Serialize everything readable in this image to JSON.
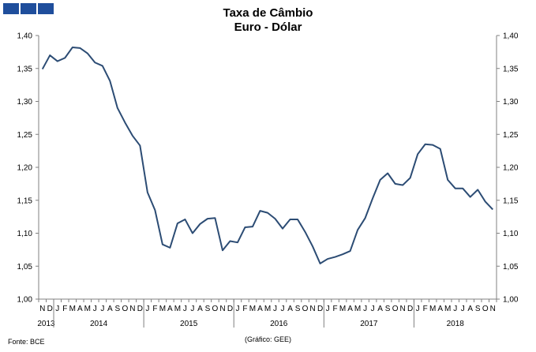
{
  "header": {
    "title_line1": "Taxa de Câmbio",
    "title_line2": "Euro - Dólar"
  },
  "logo": {
    "icon": "institution-logo-blocks",
    "color": "#1f4e9c"
  },
  "footer": {
    "source": "Fonte: BCE",
    "credit": "(Gráfico: GEE)"
  },
  "chart_data": {
    "type": "line",
    "title": "Taxa de Câmbio Euro - Dólar",
    "ylim": [
      1.0,
      1.4
    ],
    "y_ticks": [
      "1,40",
      "1,35",
      "1,30",
      "1,25",
      "1,20",
      "1,15",
      "1,10",
      "1,05",
      "1,00"
    ],
    "y_tick_values": [
      1.4,
      1.35,
      1.3,
      1.25,
      1.2,
      1.15,
      1.1,
      1.05,
      1.0
    ],
    "y_axes": [
      "left",
      "right"
    ],
    "grid": false,
    "line_color": "#2c4c74",
    "x_months": [
      "N",
      "D",
      "J",
      "F",
      "M",
      "A",
      "M",
      "J",
      "J",
      "A",
      "S",
      "O",
      "N",
      "D",
      "J",
      "F",
      "M",
      "A",
      "M",
      "J",
      "J",
      "A",
      "S",
      "O",
      "N",
      "D",
      "J",
      "F",
      "M",
      "A",
      "M",
      "J",
      "J",
      "A",
      "S",
      "O",
      "N",
      "D",
      "J",
      "F",
      "M",
      "A",
      "M",
      "J",
      "J",
      "A",
      "S",
      "O",
      "N",
      "D",
      "J",
      "F",
      "M",
      "A",
      "M",
      "J",
      "J",
      "A",
      "S",
      "O",
      "N"
    ],
    "x_years": [
      {
        "label": "2013",
        "start": 0,
        "end": 1
      },
      {
        "label": "2014",
        "start": 2,
        "end": 13
      },
      {
        "label": "2015",
        "start": 14,
        "end": 25
      },
      {
        "label": "2016",
        "start": 26,
        "end": 37
      },
      {
        "label": "2017",
        "start": 38,
        "end": 49
      },
      {
        "label": "2018",
        "start": 50,
        "end": 60
      }
    ],
    "values": [
      1.349,
      1.37,
      1.361,
      1.366,
      1.382,
      1.381,
      1.373,
      1.359,
      1.354,
      1.331,
      1.29,
      1.268,
      1.248,
      1.233,
      1.162,
      1.135,
      1.083,
      1.078,
      1.115,
      1.121,
      1.1,
      1.114,
      1.122,
      1.123,
      1.074,
      1.088,
      1.086,
      1.109,
      1.11,
      1.134,
      1.131,
      1.122,
      1.107,
      1.121,
      1.121,
      1.102,
      1.08,
      1.054,
      1.061,
      1.064,
      1.068,
      1.073,
      1.105,
      1.123,
      1.153,
      1.181,
      1.191,
      1.175,
      1.173,
      1.184,
      1.22,
      1.235,
      1.234,
      1.228,
      1.181,
      1.168,
      1.168,
      1.155,
      1.166,
      1.148,
      1.136
    ]
  }
}
